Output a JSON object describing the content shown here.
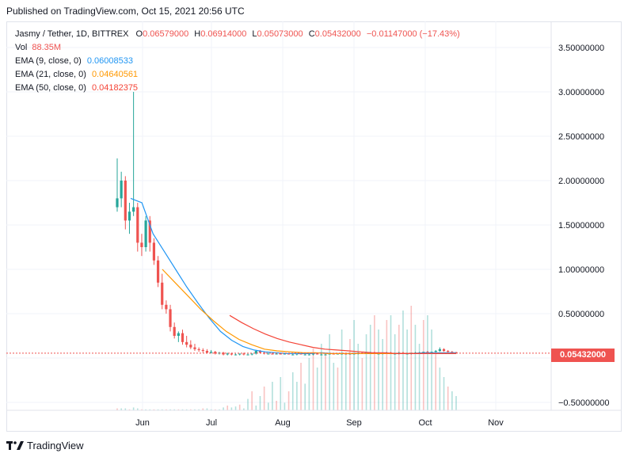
{
  "published": "Published on TradingView.com, Oct 15, 2021 20:56 UTC",
  "legend": {
    "symbol": "Jasmy / Tether, 1D, BITTREX",
    "o_label": "O",
    "o_value": "0.06579000",
    "h_label": "H",
    "h_value": "0.06914000",
    "l_label": "L",
    "l_value": "0.05073000",
    "c_label": "C",
    "c_value": "0.05432000",
    "change": "−0.01147000 (−17.43%)",
    "vol_label": "Vol",
    "vol_value": "88.35M",
    "ema9_label": "EMA (9, close, 0)",
    "ema9_value": "0.06008533",
    "ema21_label": "EMA (21, close, 0)",
    "ema21_value": "0.04640561",
    "ema50_label": "EMA (50, close, 0)",
    "ema50_value": "0.04182375"
  },
  "colors": {
    "up": "#26a69a",
    "down": "#ef5350",
    "ema9": "#2196f3",
    "ema21": "#ff9800",
    "ema50": "#f44336",
    "grid": "#f0f3fa"
  },
  "price_axis": [
    "3.50000000",
    "3.00000000",
    "2.50000000",
    "2.00000000",
    "1.50000000",
    "1.00000000",
    "0.50000000",
    "−0.50000000"
  ],
  "last_price": "0.05432000",
  "time_axis": [
    "Jun",
    "Jul",
    "Aug",
    "Sep",
    "Oct",
    "Nov"
  ],
  "footer": {
    "logo_text": "TradingView",
    "logo_icon": "tradingview-logo-icon"
  },
  "chart_data": {
    "type": "candlestick",
    "title": "Jasmy / Tether, 1D, BITTREX",
    "ylim": [
      -0.6,
      3.8
    ],
    "x_ticks": [
      "Jun",
      "Jul",
      "Aug",
      "Sep",
      "Oct",
      "Nov"
    ],
    "candles": [
      {
        "o": 1.7,
        "h": 2.25,
        "l": 1.65,
        "c": 1.8
      },
      {
        "o": 1.8,
        "h": 2.1,
        "l": 1.7,
        "c": 2.0
      },
      {
        "o": 2.0,
        "h": 2.05,
        "l": 1.45,
        "c": 1.55
      },
      {
        "o": 1.55,
        "h": 1.75,
        "l": 1.4,
        "c": 1.65
      },
      {
        "o": 1.65,
        "h": 3.0,
        "l": 1.6,
        "c": 1.7
      },
      {
        "o": 1.7,
        "h": 1.75,
        "l": 1.2,
        "c": 1.3
      },
      {
        "o": 1.3,
        "h": 1.4,
        "l": 1.15,
        "c": 1.25
      },
      {
        "o": 1.25,
        "h": 1.6,
        "l": 1.2,
        "c": 1.55
      },
      {
        "o": 1.55,
        "h": 1.6,
        "l": 1.2,
        "c": 1.3
      },
      {
        "o": 1.3,
        "h": 1.35,
        "l": 1.05,
        "c": 1.1
      },
      {
        "o": 1.1,
        "h": 1.15,
        "l": 0.8,
        "c": 0.85
      },
      {
        "o": 0.85,
        "h": 0.95,
        "l": 0.55,
        "c": 0.6
      },
      {
        "o": 0.6,
        "h": 0.65,
        "l": 0.5,
        "c": 0.55
      },
      {
        "o": 0.55,
        "h": 0.6,
        "l": 0.3,
        "c": 0.35
      },
      {
        "o": 0.35,
        "h": 0.4,
        "l": 0.22,
        "c": 0.25
      },
      {
        "o": 0.25,
        "h": 0.3,
        "l": 0.18,
        "c": 0.28
      },
      {
        "o": 0.28,
        "h": 0.32,
        "l": 0.15,
        "c": 0.18
      },
      {
        "o": 0.18,
        "h": 0.25,
        "l": 0.12,
        "c": 0.15
      },
      {
        "o": 0.15,
        "h": 0.2,
        "l": 0.1,
        "c": 0.12
      },
      {
        "o": 0.12,
        "h": 0.16,
        "l": 0.08,
        "c": 0.1
      },
      {
        "o": 0.1,
        "h": 0.12,
        "l": 0.07,
        "c": 0.09
      },
      {
        "o": 0.09,
        "h": 0.11,
        "l": 0.06,
        "c": 0.08
      },
      {
        "o": 0.08,
        "h": 0.1,
        "l": 0.05,
        "c": 0.06
      },
      {
        "o": 0.06,
        "h": 0.09,
        "l": 0.05,
        "c": 0.07
      },
      {
        "o": 0.07,
        "h": 0.08,
        "l": 0.04,
        "c": 0.05
      },
      {
        "o": 0.05,
        "h": 0.07,
        "l": 0.04,
        "c": 0.06
      },
      {
        "o": 0.06,
        "h": 0.07,
        "l": 0.03,
        "c": 0.04
      },
      {
        "o": 0.04,
        "h": 0.06,
        "l": 0.03,
        "c": 0.05
      },
      {
        "o": 0.05,
        "h": 0.06,
        "l": 0.03,
        "c": 0.04
      },
      {
        "o": 0.04,
        "h": 0.05,
        "l": 0.03,
        "c": 0.04
      },
      {
        "o": 0.04,
        "h": 0.05,
        "l": 0.03,
        "c": 0.05
      },
      {
        "o": 0.05,
        "h": 0.06,
        "l": 0.03,
        "c": 0.04
      },
      {
        "o": 0.04,
        "h": 0.05,
        "l": 0.03,
        "c": 0.04
      },
      {
        "o": 0.04,
        "h": 0.05,
        "l": 0.03,
        "c": 0.05
      },
      {
        "o": 0.05,
        "h": 0.09,
        "l": 0.04,
        "c": 0.08
      },
      {
        "o": 0.08,
        "h": 0.09,
        "l": 0.05,
        "c": 0.06
      },
      {
        "o": 0.06,
        "h": 0.07,
        "l": 0.04,
        "c": 0.05
      },
      {
        "o": 0.05,
        "h": 0.06,
        "l": 0.04,
        "c": 0.05
      },
      {
        "o": 0.05,
        "h": 0.06,
        "l": 0.04,
        "c": 0.04
      },
      {
        "o": 0.04,
        "h": 0.05,
        "l": 0.04,
        "c": 0.05
      },
      {
        "o": 0.05,
        "h": 0.06,
        "l": 0.04,
        "c": 0.04
      },
      {
        "o": 0.04,
        "h": 0.05,
        "l": 0.04,
        "c": 0.05
      },
      {
        "o": 0.05,
        "h": 0.05,
        "l": 0.04,
        "c": 0.04
      },
      {
        "o": 0.04,
        "h": 0.05,
        "l": 0.03,
        "c": 0.04
      },
      {
        "o": 0.04,
        "h": 0.05,
        "l": 0.03,
        "c": 0.05
      },
      {
        "o": 0.05,
        "h": 0.05,
        "l": 0.04,
        "c": 0.04
      },
      {
        "o": 0.04,
        "h": 0.05,
        "l": 0.03,
        "c": 0.04
      },
      {
        "o": 0.04,
        "h": 0.05,
        "l": 0.03,
        "c": 0.04
      },
      {
        "o": 0.04,
        "h": 0.05,
        "l": 0.03,
        "c": 0.05
      },
      {
        "o": 0.05,
        "h": 0.05,
        "l": 0.04,
        "c": 0.04
      },
      {
        "o": 0.04,
        "h": 0.05,
        "l": 0.03,
        "c": 0.04
      },
      {
        "o": 0.04,
        "h": 0.05,
        "l": 0.03,
        "c": 0.04
      },
      {
        "o": 0.04,
        "h": 0.05,
        "l": 0.04,
        "c": 0.05
      },
      {
        "o": 0.05,
        "h": 0.05,
        "l": 0.04,
        "c": 0.04
      },
      {
        "o": 0.04,
        "h": 0.05,
        "l": 0.04,
        "c": 0.05
      },
      {
        "o": 0.05,
        "h": 0.06,
        "l": 0.04,
        "c": 0.05
      },
      {
        "o": 0.05,
        "h": 0.06,
        "l": 0.04,
        "c": 0.04
      },
      {
        "o": 0.04,
        "h": 0.05,
        "l": 0.04,
        "c": 0.05
      },
      {
        "o": 0.05,
        "h": 0.06,
        "l": 0.04,
        "c": 0.05
      },
      {
        "o": 0.05,
        "h": 0.06,
        "l": 0.04,
        "c": 0.06
      },
      {
        "o": 0.06,
        "h": 0.06,
        "l": 0.05,
        "c": 0.05
      },
      {
        "o": 0.05,
        "h": 0.06,
        "l": 0.05,
        "c": 0.06
      },
      {
        "o": 0.06,
        "h": 0.07,
        "l": 0.05,
        "c": 0.06
      },
      {
        "o": 0.06,
        "h": 0.07,
        "l": 0.05,
        "c": 0.05
      },
      {
        "o": 0.05,
        "h": 0.06,
        "l": 0.04,
        "c": 0.05
      },
      {
        "o": 0.05,
        "h": 0.06,
        "l": 0.04,
        "c": 0.06
      },
      {
        "o": 0.06,
        "h": 0.07,
        "l": 0.05,
        "c": 0.06
      },
      {
        "o": 0.06,
        "h": 0.07,
        "l": 0.05,
        "c": 0.05
      },
      {
        "o": 0.05,
        "h": 0.06,
        "l": 0.04,
        "c": 0.05
      },
      {
        "o": 0.05,
        "h": 0.07,
        "l": 0.04,
        "c": 0.06
      },
      {
        "o": 0.06,
        "h": 0.07,
        "l": 0.05,
        "c": 0.05
      },
      {
        "o": 0.05,
        "h": 0.06,
        "l": 0.04,
        "c": 0.05
      },
      {
        "o": 0.05,
        "h": 0.06,
        "l": 0.04,
        "c": 0.06
      },
      {
        "o": 0.06,
        "h": 0.07,
        "l": 0.05,
        "c": 0.06
      },
      {
        "o": 0.06,
        "h": 0.07,
        "l": 0.05,
        "c": 0.06
      },
      {
        "o": 0.06,
        "h": 0.07,
        "l": 0.05,
        "c": 0.07
      },
      {
        "o": 0.07,
        "h": 0.08,
        "l": 0.06,
        "c": 0.06
      },
      {
        "o": 0.06,
        "h": 0.07,
        "l": 0.05,
        "c": 0.07
      },
      {
        "o": 0.07,
        "h": 0.09,
        "l": 0.06,
        "c": 0.08
      },
      {
        "o": 0.08,
        "h": 0.12,
        "l": 0.07,
        "c": 0.1
      },
      {
        "o": 0.1,
        "h": 0.11,
        "l": 0.07,
        "c": 0.08
      },
      {
        "o": 0.08,
        "h": 0.09,
        "l": 0.06,
        "c": 0.07
      },
      {
        "o": 0.07,
        "h": 0.08,
        "l": 0.05,
        "c": 0.06
      },
      {
        "o": 0.066,
        "h": 0.069,
        "l": 0.051,
        "c": 0.054
      }
    ],
    "volume": [
      0.02,
      0.02,
      0.02,
      0.01,
      0.03,
      0.02,
      0.01,
      0.01,
      0.01,
      0.01,
      0.01,
      0.01,
      0.01,
      0.01,
      0.01,
      0.01,
      0.01,
      0.01,
      0.01,
      0.01,
      0.01,
      0.02,
      0.02,
      0.01,
      0.01,
      0.01,
      0.03,
      0.05,
      0.03,
      0.04,
      0.06,
      0.02,
      0.12,
      0.2,
      0.05,
      0.15,
      0.25,
      0.08,
      0.3,
      0.1,
      0.35,
      0.08,
      0.2,
      0.4,
      0.3,
      0.5,
      0.28,
      0.55,
      0.65,
      0.45,
      0.7,
      0.6,
      0.8,
      0.5,
      0.45,
      0.85,
      0.6,
      0.75,
      0.95,
      0.7,
      0.55,
      0.8,
      0.9,
      1.0,
      0.85,
      0.75,
      0.95,
      1.0,
      0.8,
      0.9,
      1.05,
      0.85,
      1.1,
      0.9,
      0.7,
      0.95,
      1.0,
      0.85,
      0.6,
      0.45,
      0.35,
      0.25,
      0.2,
      0.15
    ],
    "ema9": [
      1.8,
      1.75,
      1.4,
      1.2,
      1.0,
      0.8,
      0.62,
      0.45,
      0.3,
      0.2,
      0.13,
      0.09,
      0.07,
      0.06,
      0.05,
      0.05,
      0.05,
      0.06,
      0.05,
      0.05,
      0.05,
      0.05,
      0.05,
      0.05,
      0.05,
      0.05,
      0.06,
      0.06,
      0.06,
      0.06
    ],
    "ema21": [
      1.0,
      0.85,
      0.7,
      0.55,
      0.42,
      0.3,
      0.21,
      0.15,
      0.1,
      0.08,
      0.07,
      0.06,
      0.06,
      0.05,
      0.05,
      0.05,
      0.05,
      0.05,
      0.05,
      0.05,
      0.05,
      0.05,
      0.05,
      0.05
    ],
    "ema50": [
      0.48,
      0.4,
      0.33,
      0.27,
      0.22,
      0.18,
      0.15,
      0.12,
      0.1,
      0.09,
      0.08,
      0.07,
      0.06,
      0.06,
      0.05,
      0.05,
      0.05,
      0.05,
      0.05,
      0.05
    ]
  }
}
